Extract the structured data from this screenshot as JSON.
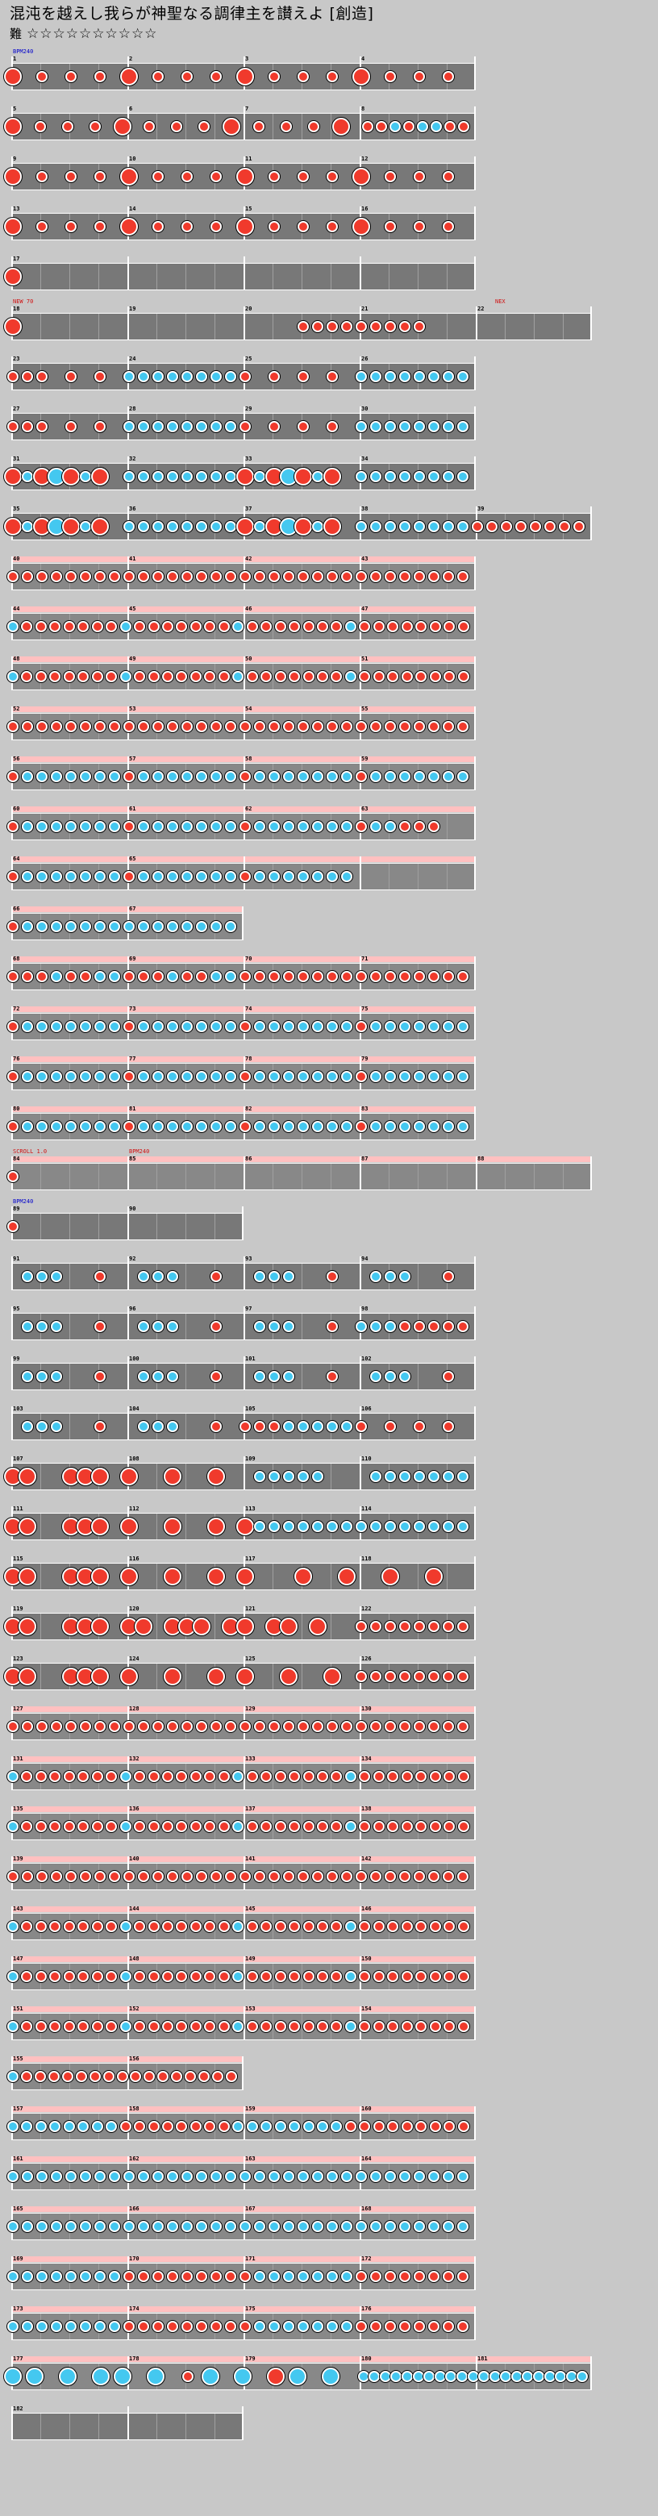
{
  "header": {
    "title": "混沌を越えし我らが神聖なる調律主を讃えよ [創造]",
    "difficulty_label": "難",
    "difficulty_stars": "☆☆☆☆☆☆☆☆☆☆"
  },
  "colors": {
    "don": "#f03a2c",
    "ka": "#44c8f0",
    "lane": "#787878",
    "gogo": "#ffc0c0",
    "background": "#c8c8c8"
  },
  "commands": {
    "bpm_start": "BPM240",
    "row6_left": "NEW 70",
    "row6_right": "NEX",
    "row23_a": "SCROLL 1.0",
    "row23_b": "BPM240",
    "row24": "BPM240"
  },
  "rows": [
    {
      "measures": [
        1,
        2,
        3,
        4
      ],
      "nums": [
        "1",
        "2",
        "3",
        "4"
      ],
      "len": 4,
      "gogo": false,
      "notes": "B.s.s.s.B.s.s.s.B.s.s.s.B.s.s.s"
    },
    {
      "measures": [
        5,
        6,
        7,
        8
      ],
      "nums": [
        "5",
        "6",
        "7",
        "8"
      ],
      "len": 4,
      "gogo": false,
      "notes": "B.s.s.s.B.s.s.s.B.s.s.s.B.sskskkss"
    },
    {
      "measures": [
        9,
        10,
        11,
        12
      ],
      "nums": [
        "9",
        "10",
        "11",
        "12"
      ],
      "len": 4,
      "gogo": false,
      "notes": "B.s.s.s.B.s.s.s.B.s.s.s.B.s.s.s"
    },
    {
      "measures": [
        13,
        14,
        15,
        16
      ],
      "nums": [
        "13",
        "14",
        "15",
        "16"
      ],
      "len": 4,
      "gogo": false,
      "notes": "B.s.s.s.B.s.s.s.B.s.s.s.B.s.s.s"
    },
    {
      "measures": [
        17
      ],
      "nums": [
        "17"
      ],
      "len": 4,
      "gogo": false,
      "notes": "B..............."
    },
    {
      "measures": [
        18,
        19,
        20,
        21,
        22
      ],
      "nums": [
        "18",
        "19",
        "20",
        "21",
        "22"
      ],
      "len": 5,
      "gogo": false,
      "notes": "B...................sssssssss"
    },
    {
      "measures": [
        23,
        24,
        25,
        26
      ],
      "nums": [
        "23",
        "24",
        "25",
        "26"
      ],
      "len": 4,
      "gogo": false,
      "notes": "sss.s.s.kkkkkkkks.s.s.s.kkkkkkkk"
    },
    {
      "measures": [
        27,
        28,
        29,
        30
      ],
      "nums": [
        "27",
        "28",
        "29",
        "30"
      ],
      "len": 4,
      "gogo": false,
      "notes": "sss.s.s.kkkkkkkks.s.s.s.kkkkkkkk"
    },
    {
      "measures": [
        31,
        32,
        33,
        34
      ],
      "nums": [
        "31",
        "32",
        "33",
        "34"
      ],
      "len": 4,
      "gogo": false,
      "notes": "BkBKBkB.kkkkkkkkBkBKBkB.kkkkkkkk"
    },
    {
      "measures": [
        35,
        36,
        37,
        38,
        39
      ],
      "nums": [
        "35",
        "36",
        "37",
        "38",
        "39"
      ],
      "len": 5,
      "gogo": false,
      "notes": "BkBKBkB.kkkkkkkkBkBKBkB.kkkkkkkkssssssss"
    },
    {
      "measures": [
        40,
        41,
        42,
        43
      ],
      "nums": [
        "40",
        "41",
        "42",
        "43"
      ],
      "len": 4,
      "gogo": true,
      "notes": "ssssssssssssssssssssssssssssssss"
    },
    {
      "measures": [
        44,
        45,
        46,
        47
      ],
      "nums": [
        "44",
        "45",
        "46",
        "47"
      ],
      "len": 4,
      "gogo": true,
      "notes": "kssssssskssssssskssssssskssssssss"
    },
    {
      "measures": [
        48,
        49,
        50,
        51
      ],
      "nums": [
        "48",
        "49",
        "50",
        "51"
      ],
      "len": 4,
      "gogo": true,
      "notes": "kssssssskssssssskssssssskssssssss"
    },
    {
      "measures": [
        52,
        53,
        54,
        55
      ],
      "nums": [
        "52",
        "53",
        "54",
        "55"
      ],
      "len": 4,
      "gogo": true,
      "notes": "ssssssssssssssssssssssssssssssss"
    },
    {
      "measures": [
        56,
        57,
        58,
        59
      ],
      "nums": [
        "56",
        "57",
        "58",
        "59"
      ],
      "len": 4,
      "gogo": true,
      "notes": "skkkkkkkskkkkkkkskkkkkkkskkkkkkk"
    },
    {
      "measures": [
        60,
        61,
        62,
        63
      ],
      "nums": [
        "60",
        "61",
        "62",
        "63"
      ],
      "len": 4,
      "gogo": true,
      "notes": "skkkkkkkskkkkkkkskkkkkkkskksss.."
    },
    {
      "measures": [
        64,
        65
      ],
      "nums": [
        "64",
        "65"
      ],
      "len": 4,
      "gogo": true,
      "notes": "skkkkkkkskkkkkkkskkkkkkk"
    },
    {
      "measures": [
        66,
        67
      ],
      "nums": [
        "66",
        "67"
      ],
      "len": 2,
      "gogo": true,
      "notes": "skkkkkkkkkkkkkkk"
    },
    {
      "measures": [
        68,
        69,
        70,
        71
      ],
      "nums": [
        "68",
        "69",
        "70",
        "71"
      ],
      "len": 4,
      "gogo": true,
      "notes": "sssksskksssksskkssssssssssssssss"
    },
    {
      "measures": [
        72,
        73,
        74,
        75
      ],
      "nums": [
        "72",
        "73",
        "74",
        "75"
      ],
      "len": 4,
      "gogo": true,
      "notes": "skkkkkkkskkkkkkkskkkkkkkskkkkkkk"
    },
    {
      "measures": [
        76,
        77,
        78,
        79
      ],
      "nums": [
        "76",
        "77",
        "78",
        "79"
      ],
      "len": 4,
      "gogo": true,
      "notes": "skkkkkkkskkkkkkkskkkkkkkskkkkkkk"
    },
    {
      "measures": [
        80,
        81,
        82,
        83
      ],
      "nums": [
        "80",
        "81",
        "82",
        "83"
      ],
      "len": 4,
      "gogo": true,
      "notes": "skkkkkkkskkkkkkkskkkkkkkskkkkkkk"
    },
    {
      "measures": [
        84,
        85,
        86,
        87,
        88
      ],
      "nums": [
        "84",
        "85",
        "86",
        "87",
        "88"
      ],
      "len": 5,
      "gogo": true,
      "notes": "s......................................."
    },
    {
      "measures": [
        89,
        90
      ],
      "nums": [
        "89",
        "90"
      ],
      "len": 2,
      "gogo": false,
      "notes": "s..............."
    },
    {
      "measures": [
        91,
        92,
        93,
        94
      ],
      "nums": [
        "91",
        "92",
        "93",
        "94"
      ],
      "len": 4,
      "gogo": false,
      "notes": ".kkk..s..kkk..s..kkk..s..kkk..s."
    },
    {
      "measures": [
        95,
        96,
        97,
        98
      ],
      "nums": [
        "95",
        "96",
        "97",
        "98"
      ],
      "len": 4,
      "gogo": false,
      "notes": ".kkk..s..kkk..s..kkk..s.kkksssss"
    },
    {
      "measures": [
        99,
        100,
        101,
        102
      ],
      "nums": [
        "99",
        "100",
        "101",
        "102"
      ],
      "len": 4,
      "gogo": false,
      "notes": ".kkk..s..kkk..s..kkk..s..kkk..s."
    },
    {
      "measures": [
        103,
        104,
        105,
        106
      ],
      "nums": [
        "103",
        "104",
        "105",
        "106"
      ],
      "len": 4,
      "gogo": false,
      "notes": ".kkk..s..kkk..s.ssskkkkks.s.s.s."
    },
    {
      "measures": [
        107,
        108,
        109,
        110
      ],
      "nums": [
        "107",
        "108",
        "109",
        "110"
      ],
      "len": 4,
      "gogo": false,
      "notes": "BB..BBB.B..B..B..kkkkk...kkkkkkk"
    },
    {
      "measures": [
        111,
        112,
        113,
        114
      ],
      "nums": [
        "111",
        "112",
        "113",
        "114"
      ],
      "len": 4,
      "gogo": false,
      "notes": "BB..BBB.B..B..B.Bkkkkkkkkkkkkkkk"
    },
    {
      "measures": [
        115,
        116,
        117,
        118
      ],
      "nums": [
        "115",
        "116",
        "117",
        "118"
      ],
      "len": 4,
      "gogo": false,
      "notes": "BB..BBB.B..B..B.B...B..B..B..B.."
    },
    {
      "measures": [
        119,
        120,
        121,
        122
      ],
      "nums": [
        "119",
        "120",
        "121",
        "122"
      ],
      "len": 4,
      "gogo": false,
      "notes": "BB..BBB.BB.BBB.BB.BB.B..ssssssss"
    },
    {
      "measures": [
        123,
        124,
        125,
        126
      ],
      "nums": [
        "123",
        "124",
        "125",
        "126"
      ],
      "len": 4,
      "gogo": false,
      "notes": "BB..BBB.B..B..B.B..B..B.ssssssss"
    },
    {
      "measures": [
        127,
        128,
        129,
        130
      ],
      "nums": [
        "127",
        "128",
        "129",
        "130"
      ],
      "len": 4,
      "gogo": true,
      "notes": "ssssssssssssssssssssssssssssssss"
    },
    {
      "measures": [
        131,
        132,
        133,
        134
      ],
      "nums": [
        "131",
        "132",
        "133",
        "134"
      ],
      "len": 4,
      "gogo": true,
      "notes": "kssssssskssssssskssssssskssssssss"
    },
    {
      "measures": [
        135,
        136,
        137,
        138
      ],
      "nums": [
        "135",
        "136",
        "137",
        "138"
      ],
      "len": 4,
      "gogo": true,
      "notes": "kssssssskssssssskssssssskssssssss"
    },
    {
      "measures": [
        139,
        140,
        141,
        142
      ],
      "nums": [
        "139",
        "140",
        "141",
        "142"
      ],
      "len": 4,
      "gogo": true,
      "notes": "ssssssssssssssssssssssssssssssss"
    },
    {
      "measures": [
        143,
        144,
        145,
        146
      ],
      "nums": [
        "143",
        "144",
        "145",
        "146"
      ],
      "len": 4,
      "gogo": true,
      "notes": "kssssssskssssssskssssssskssssssss"
    },
    {
      "measures": [
        147,
        148,
        149,
        150
      ],
      "nums": [
        "147",
        "148",
        "149",
        "150"
      ],
      "len": 4,
      "gogo": true,
      "notes": "kssssssskssssssskssssssskssssssss"
    },
    {
      "measures": [
        151,
        152,
        153,
        154
      ],
      "nums": [
        "151",
        "152",
        "153",
        "154"
      ],
      "len": 4,
      "gogo": true,
      "notes": "kssssssskssssssskssssssskssssssss"
    },
    {
      "measures": [
        155,
        156
      ],
      "nums": [
        "155",
        "156"
      ],
      "len": 2,
      "gogo": true,
      "notes": "kssssssssssssssss"
    },
    {
      "measures": [
        157,
        158,
        159,
        160
      ],
      "nums": [
        "157",
        "158",
        "159",
        "160"
      ],
      "len": 4,
      "gogo": true,
      "notes": "kkkkkkkksssssssskkkkkkkksssssssss"
    },
    {
      "measures": [
        161,
        162,
        163,
        164
      ],
      "nums": [
        "161",
        "162",
        "163",
        "164"
      ],
      "len": 4,
      "gogo": true,
      "notes": "kkkkkkkkkkkkkkkkkkkkkkkkkkkkkkkk"
    },
    {
      "measures": [
        165,
        166,
        167,
        168
      ],
      "nums": [
        "165",
        "166",
        "167",
        "168"
      ],
      "len": 4,
      "gogo": true,
      "notes": "kkkkkkkkkkkkkkkkkkkkkkkkkkkkkkkk"
    },
    {
      "measures": [
        169,
        170,
        171,
        172
      ],
      "nums": [
        "169",
        "170",
        "171",
        "172"
      ],
      "len": 4,
      "gogo": true,
      "notes": "kkkkkkkkssssssssskkkkkkkssssssss"
    },
    {
      "measures": [
        173,
        174,
        175,
        176
      ],
      "nums": [
        "173",
        "174",
        "175",
        "176"
      ],
      "len": 4,
      "gogo": true,
      "notes": "kkkkkkkkssssssssskkkkkkkssssssss"
    },
    {
      "measures": [
        177,
        178,
        179,
        180,
        181
      ],
      "nums": [
        "177",
        "178",
        "179",
        "180",
        "181"
      ],
      "len": 5,
      "gogo": true,
      "notes": "K.K..K..K.K..K..s.K..K..B.K..K..kkkkkkkkkkkkkkkkkkkkk"
    },
    {
      "measures": [
        182
      ],
      "nums": [
        "182"
      ],
      "len": 2,
      "gogo": false,
      "notes": "................"
    }
  ]
}
